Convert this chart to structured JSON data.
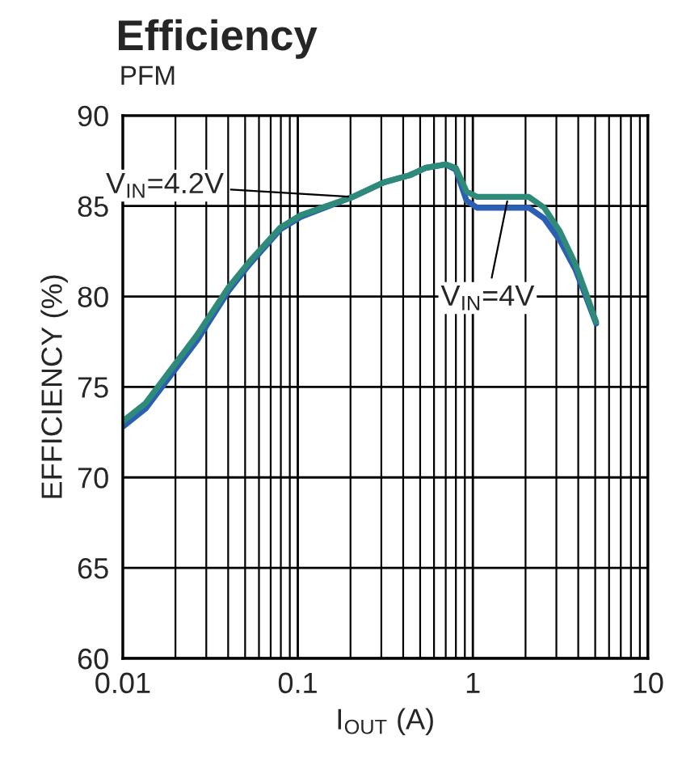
{
  "chart_data": {
    "type": "line",
    "title": "Efficiency",
    "subtitle": "PFM",
    "xlabel": "I$_{OUT}$ (A)",
    "ylabel": "EFFICIENCY (%)",
    "x": [
      0.01,
      0.0135,
      0.0267,
      0.0402,
      0.0527,
      0.0793,
      0.104,
      0.206,
      0.31,
      0.436,
      0.535,
      0.7,
      0.8,
      0.92,
      1.06,
      1.59,
      2.09,
      2.56,
      3.14,
      3.85,
      4.42,
      5.06
    ],
    "series": [
      {
        "name": "V$_{IN}$=4.2V",
        "color": "#2b5fb4",
        "values": [
          72.8,
          73.8,
          77.6,
          80.3,
          81.75,
          83.7,
          84.4,
          85.5,
          86.3,
          86.7,
          87.1,
          87.3,
          87.0,
          85.3,
          84.9,
          84.9,
          84.9,
          84.3,
          83.1,
          81.5,
          80.0,
          78.5
        ]
      },
      {
        "name": "V$_{IN}$=4V",
        "color": "#2e8b7a",
        "values": [
          73.1,
          74.1,
          77.9,
          80.5,
          81.9,
          83.8,
          84.5,
          85.5,
          86.3,
          86.7,
          87.1,
          87.3,
          87.1,
          85.8,
          85.5,
          85.5,
          85.5,
          84.9,
          83.6,
          81.8,
          80.2,
          78.6
        ]
      }
    ],
    "xlim": [
      0.01,
      10
    ],
    "xticks": [
      0.01,
      0.1,
      1,
      10
    ],
    "ylim": [
      60,
      90
    ],
    "yticks": [
      60,
      65,
      70,
      75,
      80,
      85,
      90
    ],
    "log": "x",
    "grid": true,
    "legend": false,
    "marker": "none",
    "line_style": "solid"
  }
}
